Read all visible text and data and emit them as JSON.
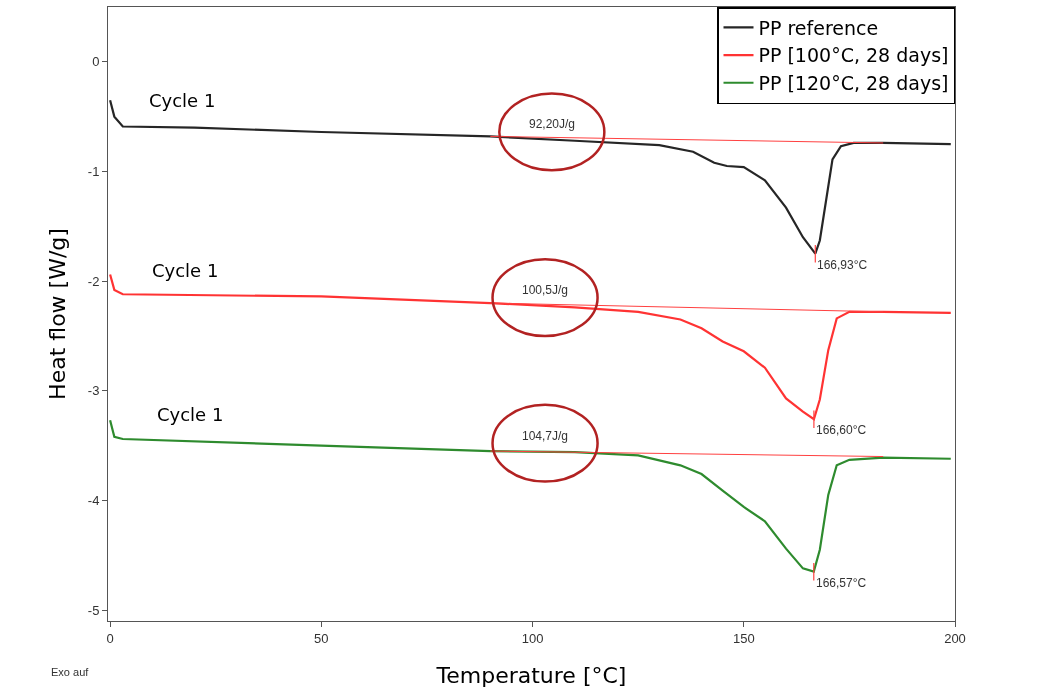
{
  "chart_data": {
    "type": "line",
    "xlabel": "Temperature [°C]",
    "ylabel": "Heat flow [W/g]",
    "series": [
      {
        "name": "PP reference",
        "color": "#262626",
        "x": [
          0,
          1,
          3,
          20,
          50,
          90,
          110,
          130,
          138,
          143,
          146,
          150,
          155,
          160,
          164,
          166.93,
          168,
          169.5,
          171,
          173,
          176,
          183,
          199
        ],
        "values": [
          -0.35,
          -0.5,
          -0.59,
          -0.6,
          -0.64,
          -0.68,
          -0.72,
          -0.76,
          -0.82,
          -0.92,
          -0.95,
          -0.96,
          -1.08,
          -1.33,
          -1.6,
          -1.75,
          -1.63,
          -1.26,
          -0.89,
          -0.77,
          -0.74,
          -0.74,
          -0.75
        ]
      },
      {
        "name": "PP [100°C, 28 days]",
        "color": "#ff3333",
        "x": [
          0,
          1,
          3,
          50,
          90,
          110,
          125,
          135,
          140,
          145,
          150,
          155,
          160,
          164,
          166.6,
          168,
          170,
          172,
          175,
          183,
          199
        ],
        "values": [
          -1.94,
          -2.08,
          -2.12,
          -2.14,
          -2.2,
          -2.24,
          -2.28,
          -2.35,
          -2.43,
          -2.55,
          -2.64,
          -2.79,
          -3.07,
          -3.19,
          -3.26,
          -3.08,
          -2.63,
          -2.34,
          -2.28,
          -2.28,
          -2.29
        ]
      },
      {
        "name": "PP [120°C, 28 days]",
        "color": "#2e8b2e",
        "x": [
          0,
          1,
          3,
          50,
          90,
          110,
          125,
          135,
          140,
          145,
          150,
          155,
          160,
          164,
          166.57,
          168,
          170,
          172,
          175,
          183,
          199
        ],
        "values": [
          -3.27,
          -3.42,
          -3.44,
          -3.5,
          -3.55,
          -3.56,
          -3.59,
          -3.68,
          -3.76,
          -3.91,
          -4.06,
          -4.19,
          -4.44,
          -4.62,
          -4.65,
          -4.45,
          -3.95,
          -3.68,
          -3.63,
          -3.61,
          -3.62
        ]
      },
      {
        "type": "line",
        "color": "#ff4040",
        "x": [
          90,
          183
        ],
        "values": [
          -0.68,
          -0.74
        ]
      },
      {
        "type": "line",
        "color": "#ff4040",
        "x": [
          90,
          183
        ],
        "values": [
          -2.2,
          -2.28
        ]
      },
      {
        "type": "line",
        "color": "#ff4040",
        "x": [
          90,
          183
        ],
        "values": [
          -3.55,
          -3.6
        ]
      }
    ],
    "xlim": [
      -0.5,
      200
    ],
    "xticks": [
      0,
      50,
      100,
      150,
      200
    ],
    "ylim": [
      -5.1,
      0.5
    ],
    "yticks": [
      -5,
      -4,
      -3,
      -2,
      -1,
      0
    ],
    "grid": false,
    "legend": "top right",
    "marker": "none",
    "line_style": "solid",
    "annotations": [
      {
        "text": "166,93°C",
        "x": 166.93,
        "y": -1.75
      },
      {
        "text": "166,60°C",
        "x": 166.6,
        "y": -3.26
      },
      {
        "text": "166,57°C",
        "x": 166.57,
        "y": -4.65
      },
      "92,20J/g",
      "100,5J/g",
      "104,7J/g",
      "Cycle 1",
      "Cycle 1",
      "Cycle 1",
      "Exo auf"
    ]
  }
}
